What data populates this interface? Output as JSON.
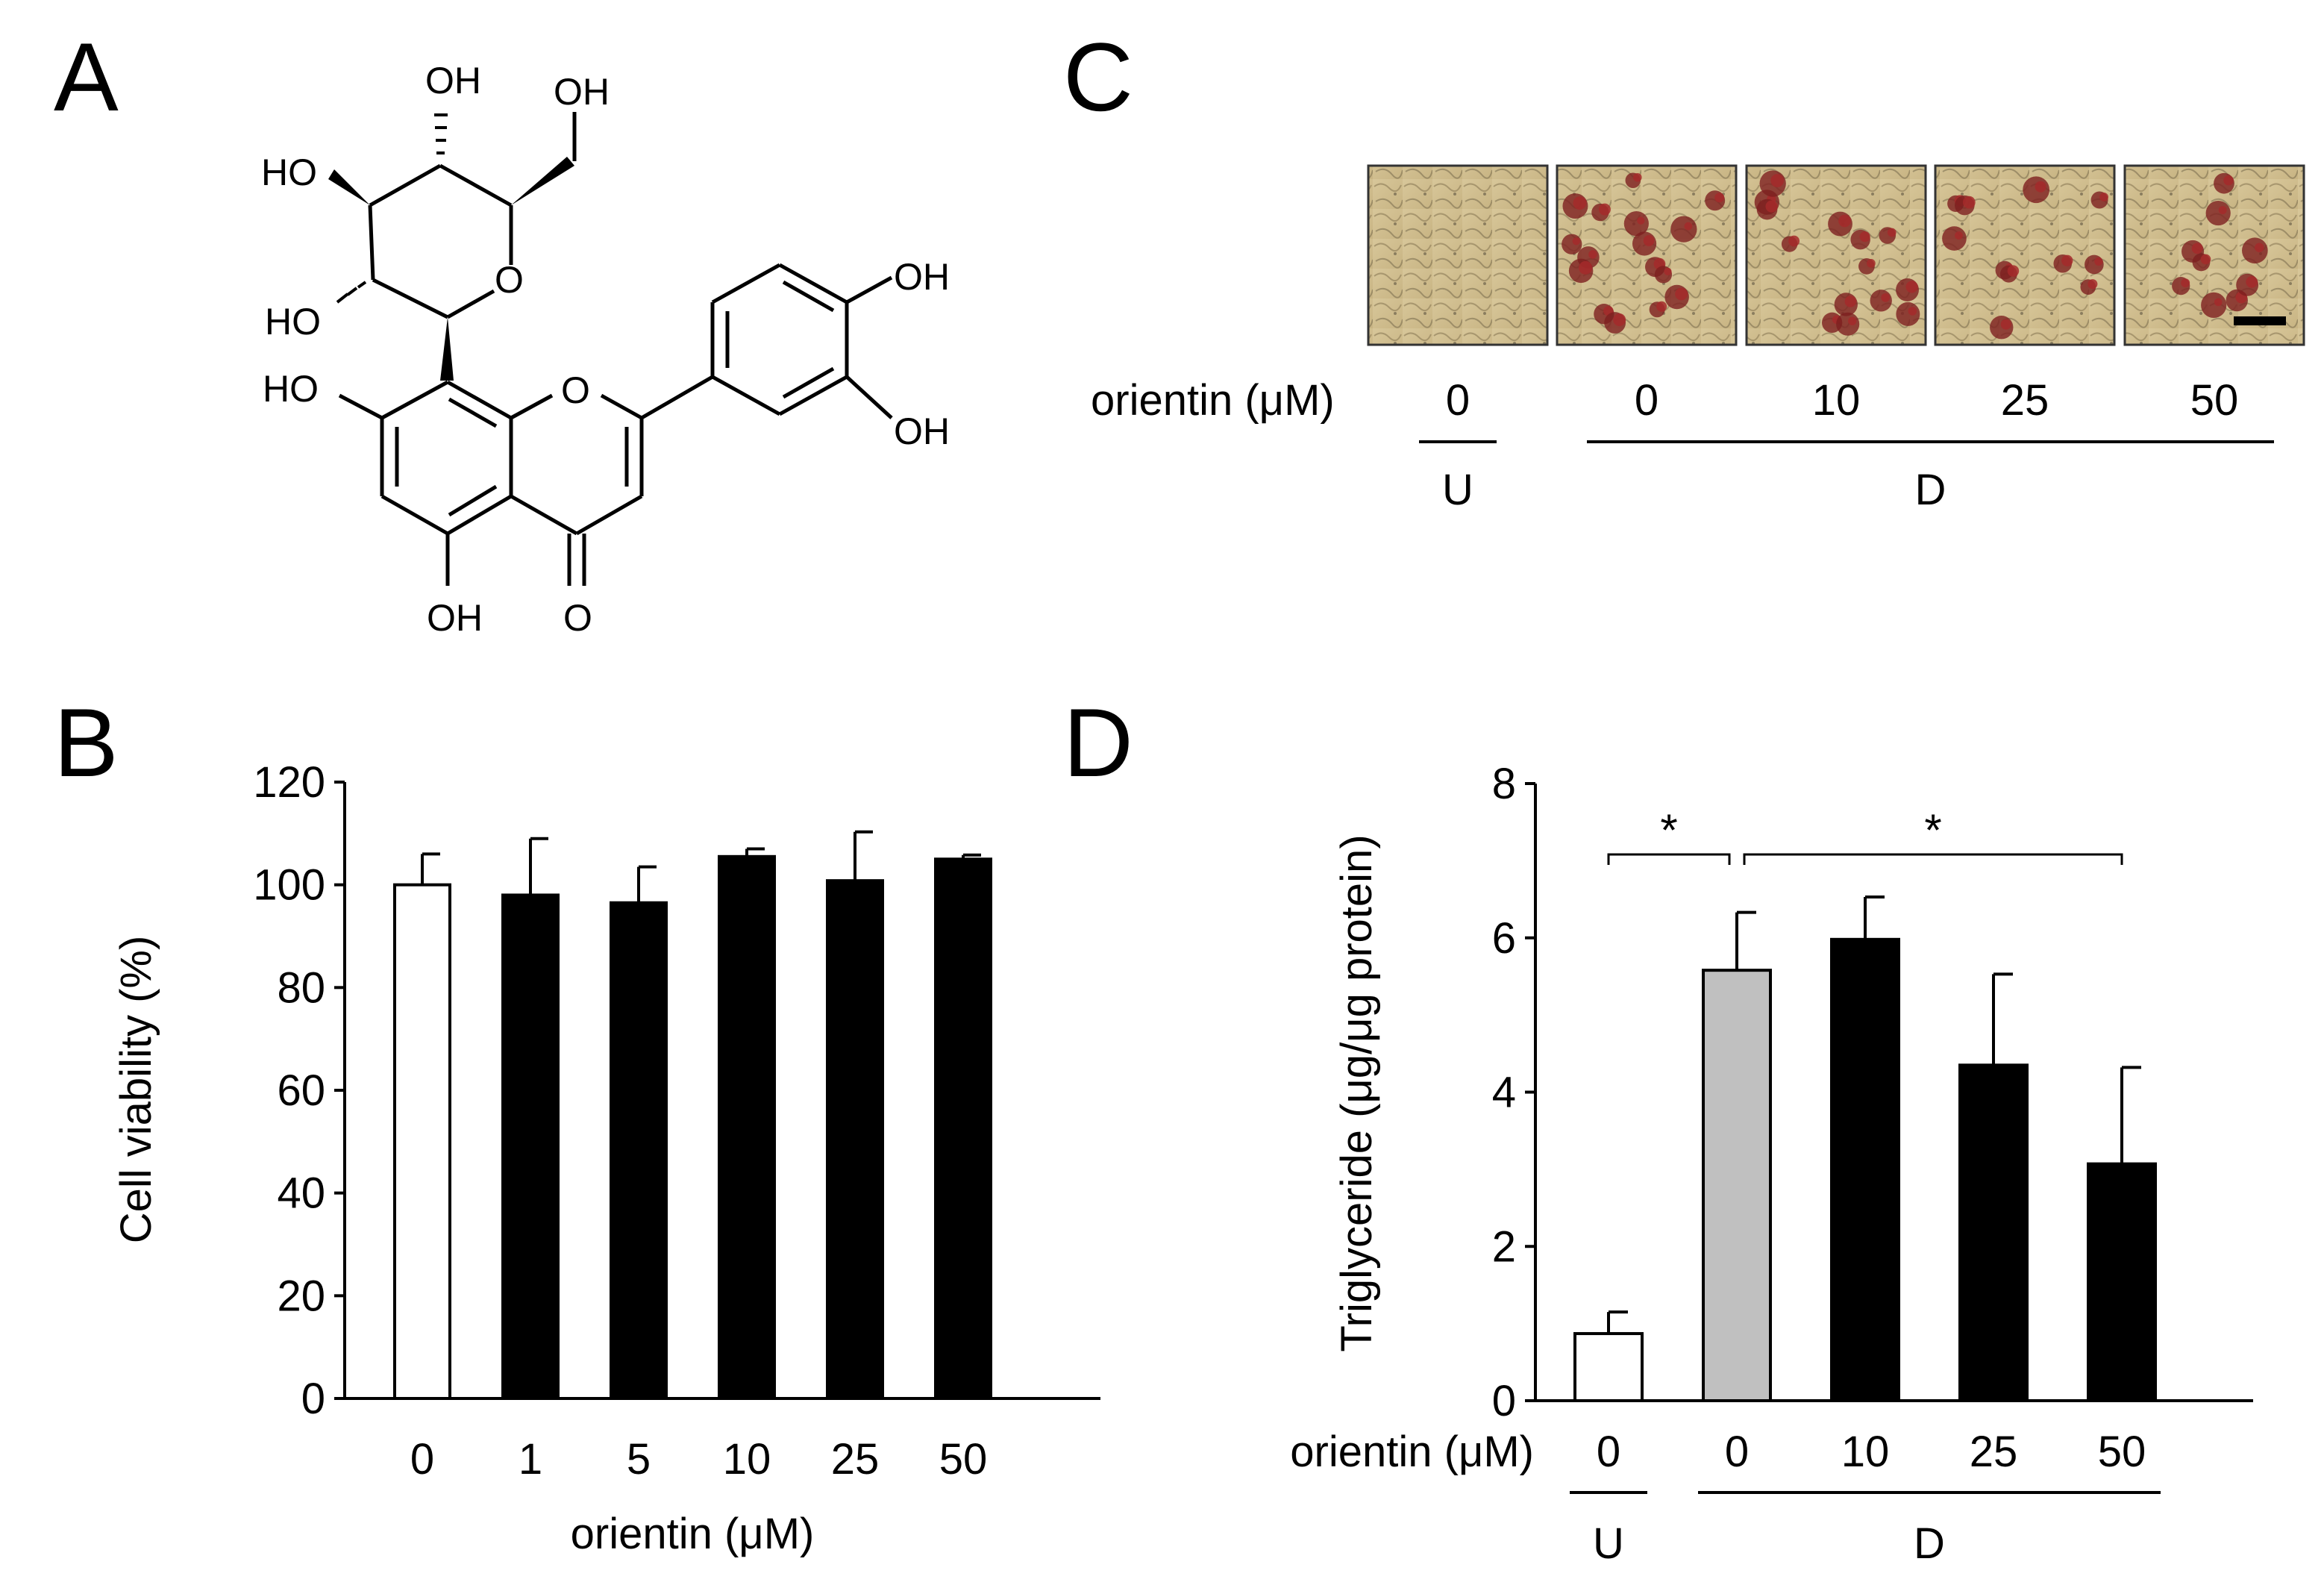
{
  "panels": {
    "a": "A",
    "b": "B",
    "c": "C",
    "d": "D"
  },
  "structure": {
    "labels": [
      "OH",
      "OH",
      "HO",
      "O",
      "HO",
      "OH",
      "HO",
      "O",
      "OH",
      "OH",
      "O"
    ]
  },
  "colors": {
    "untreated_bar": "#ffffff",
    "differentiated_control_bar": "#c0c0c0",
    "treated_bar": "#000000"
  },
  "chart_data": [
    {
      "panel": "B",
      "type": "bar",
      "categories": [
        "0",
        "1",
        "5",
        "10",
        "25",
        "50"
      ],
      "values": [
        100,
        98,
        96.5,
        105.5,
        100.8,
        105
      ],
      "errors": [
        6,
        11,
        7,
        1.5,
        9.5,
        0.8
      ],
      "bar_fill": [
        "white",
        "black",
        "black",
        "black",
        "black",
        "black"
      ],
      "xlabel": "orientin (μM)",
      "ylabel": "Cell viability (%)",
      "ylim": [
        0,
        120
      ],
      "yticks": [
        "0",
        "20",
        "40",
        "60",
        "80",
        "100",
        "120"
      ],
      "grid": false
    },
    {
      "panel": "C",
      "type": "table",
      "row_label": "orientin (μM)",
      "images": 5,
      "doses": [
        "0",
        "0",
        "10",
        "25",
        "50"
      ],
      "groups": [
        {
          "label": "U",
          "span": [
            0,
            0
          ]
        },
        {
          "label": "D",
          "span": [
            1,
            4
          ]
        }
      ]
    },
    {
      "panel": "D",
      "type": "bar",
      "categories": [
        "0",
        "0",
        "10",
        "25",
        "50"
      ],
      "values": [
        0.87,
        5.58,
        5.98,
        4.35,
        3.07
      ],
      "errors": [
        0.28,
        0.75,
        0.55,
        1.18,
        1.25
      ],
      "bar_fill": [
        "white",
        "gray",
        "black",
        "black",
        "black"
      ],
      "xlabel": "orientin (μM)",
      "ylabel": "Triglyceride (μg/μg protein)",
      "ylim": [
        0,
        8
      ],
      "yticks": [
        "0",
        "2",
        "4",
        "6",
        "8"
      ],
      "groups": [
        {
          "label": "U",
          "span": [
            0,
            0
          ]
        },
        {
          "label": "D",
          "span": [
            1,
            4
          ]
        }
      ],
      "significance": [
        {
          "from": 0,
          "to": 1,
          "label": "*"
        },
        {
          "from": 1,
          "to": 4,
          "label": "*"
        }
      ],
      "grid": false
    }
  ]
}
